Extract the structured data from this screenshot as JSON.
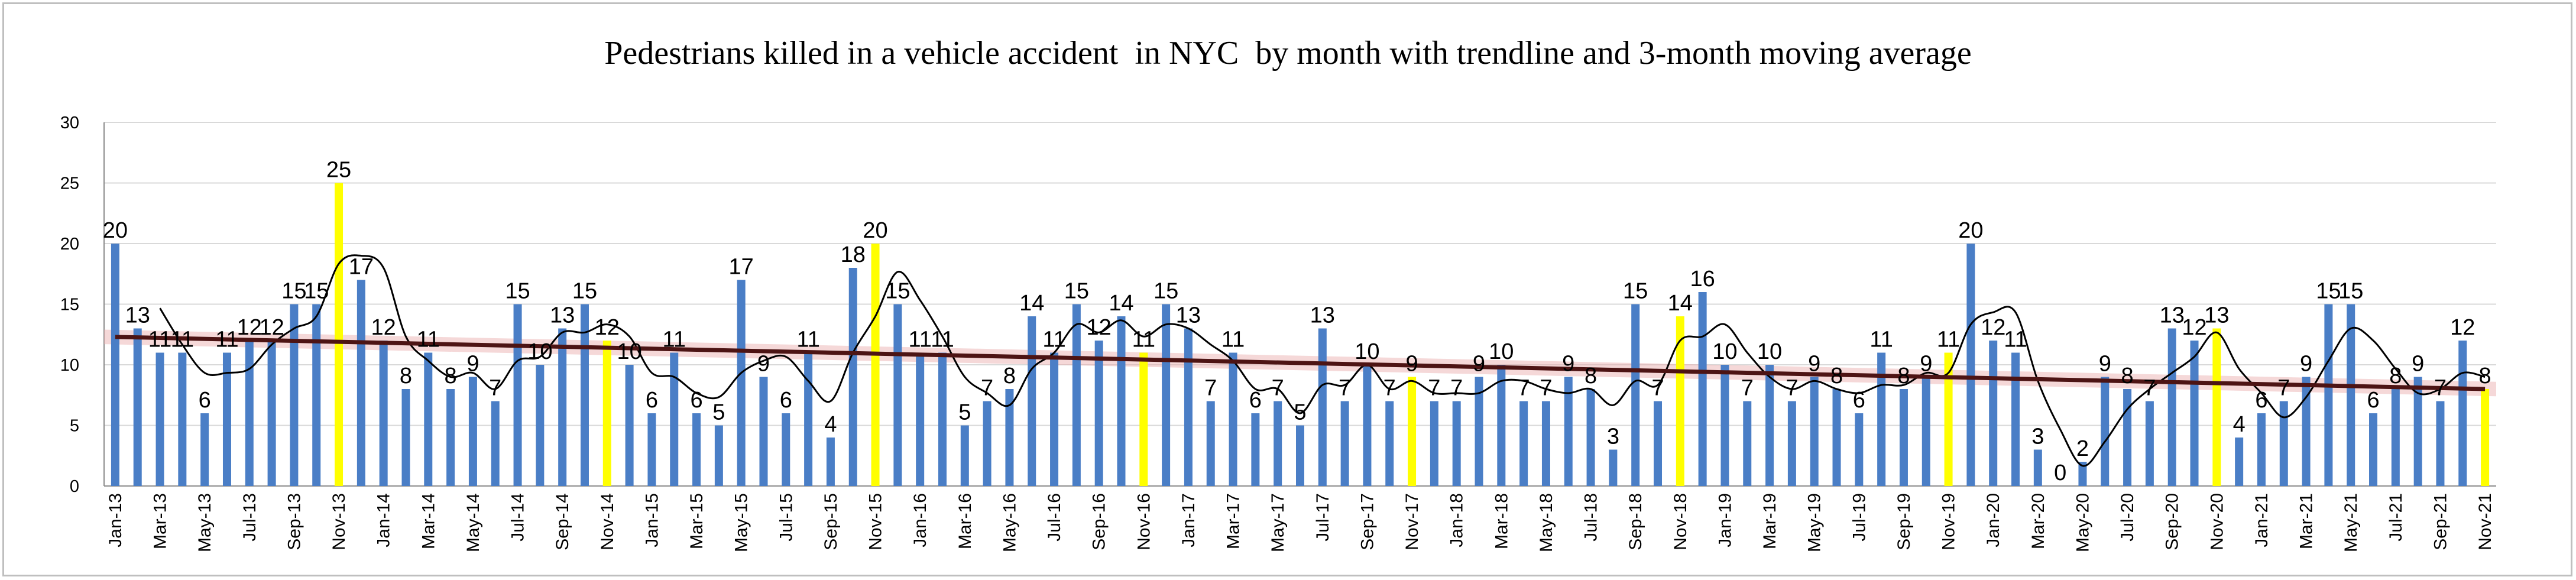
{
  "chart_data": {
    "type": "bar",
    "title": "Pedestrians killed in a vehicle accident  in NYC  by month with trendline and 3-month moving average",
    "xlabel": "",
    "ylabel": "",
    "ylim": [
      0,
      30
    ],
    "yticks": [
      0,
      5,
      10,
      15,
      20,
      25,
      30
    ],
    "grid": true,
    "legend": "none",
    "x_tick_labels": [
      "Jan-13",
      "Mar-13",
      "May-13",
      "Jul-13",
      "Sep-13",
      "Nov-13",
      "Jan-14",
      "Mar-14",
      "May-14",
      "Jul-14",
      "Sep-14",
      "Nov-14",
      "Jan-15",
      "Mar-15",
      "May-15",
      "Jul-15",
      "Sep-15",
      "Nov-15",
      "Jan-16",
      "Mar-16",
      "May-16",
      "Jul-16",
      "Sep-16",
      "Nov-16",
      "Jan-17",
      "Mar-17",
      "May-17",
      "Jul-17",
      "Sep-17",
      "Nov-17",
      "Jan-18",
      "Mar-18",
      "May-18",
      "Jul-18",
      "Sep-18",
      "Nov-18",
      "Jan-19",
      "Mar-19",
      "May-19",
      "Jul-19",
      "Sep-19",
      "Nov-19",
      "Jan-20",
      "Mar-20",
      "May-20",
      "Jul-20",
      "Sep-20",
      "Nov-20",
      "Jan-21",
      "Mar-21",
      "May-21",
      "Jul-21",
      "Sep-21",
      "Nov-21"
    ],
    "categories": [
      "Jan-13",
      "Feb-13",
      "Mar-13",
      "Apr-13",
      "May-13",
      "Jun-13",
      "Jul-13",
      "Aug-13",
      "Sep-13",
      "Oct-13",
      "Nov-13",
      "Dec-13",
      "Jan-14",
      "Feb-14",
      "Mar-14",
      "Apr-14",
      "May-14",
      "Jun-14",
      "Jul-14",
      "Aug-14",
      "Sep-14",
      "Oct-14",
      "Nov-14",
      "Dec-14",
      "Jan-15",
      "Feb-15",
      "Mar-15",
      "Apr-15",
      "May-15",
      "Jun-15",
      "Jul-15",
      "Aug-15",
      "Sep-15",
      "Oct-15",
      "Nov-15",
      "Dec-15",
      "Jan-16",
      "Feb-16",
      "Mar-16",
      "Apr-16",
      "May-16",
      "Jun-16",
      "Jul-16",
      "Aug-16",
      "Sep-16",
      "Oct-16",
      "Nov-16",
      "Dec-16",
      "Jan-17",
      "Feb-17",
      "Mar-17",
      "Apr-17",
      "May-17",
      "Jun-17",
      "Jul-17",
      "Aug-17",
      "Sep-17",
      "Oct-17",
      "Nov-17",
      "Dec-17",
      "Jan-18",
      "Feb-18",
      "Mar-18",
      "Apr-18",
      "May-18",
      "Jun-18",
      "Jul-18",
      "Aug-18",
      "Sep-18",
      "Oct-18",
      "Nov-18",
      "Dec-18",
      "Jan-19",
      "Feb-19",
      "Mar-19",
      "Apr-19",
      "May-19",
      "Jun-19",
      "Jul-19",
      "Aug-19",
      "Sep-19",
      "Oct-19",
      "Nov-19",
      "Dec-19",
      "Jan-20",
      "Feb-20",
      "Mar-20",
      "Apr-20",
      "May-20",
      "Jun-20",
      "Jul-20",
      "Aug-20",
      "Sep-20",
      "Oct-20",
      "Nov-20",
      "Dec-20",
      "Jan-21",
      "Feb-21",
      "Mar-21",
      "Apr-21",
      "May-21",
      "Jun-21",
      "Jul-21",
      "Aug-21",
      "Sep-21",
      "Oct-21",
      "Nov-21"
    ],
    "values": [
      20,
      13,
      11,
      11,
      6,
      11,
      12,
      12,
      15,
      15,
      25,
      17,
      12,
      8,
      11,
      8,
      9,
      7,
      15,
      10,
      13,
      15,
      12,
      10,
      6,
      11,
      6,
      5,
      17,
      9,
      6,
      11,
      4,
      18,
      20,
      15,
      11,
      11,
      5,
      7,
      8,
      14,
      11,
      15,
      12,
      14,
      11,
      15,
      13,
      7,
      11,
      6,
      7,
      5,
      13,
      7,
      10,
      7,
      9,
      7,
      7,
      9,
      10,
      7,
      7,
      9,
      8,
      3,
      15,
      7,
      14,
      16,
      10,
      7,
      10,
      7,
      9,
      8,
      6,
      11,
      8,
      9,
      11,
      20,
      12,
      11,
      3,
      0,
      2,
      9,
      8,
      7,
      13,
      12,
      13,
      4,
      6,
      7,
      9,
      15,
      15,
      6,
      8,
      9,
      7,
      12,
      8
    ],
    "highlight_months": [
      "Nov-13",
      "Nov-14",
      "Nov-15",
      "Nov-16",
      "Nov-17",
      "Nov-18",
      "Nov-19",
      "Nov-20",
      "Nov-21"
    ],
    "overlays": [
      {
        "type": "linear-trendline",
        "start": 12.3,
        "end": 8.0
      },
      {
        "type": "moving-average",
        "window": 3
      }
    ],
    "colors": {
      "bar": "#4a7ec6",
      "highlight_bar": "#ffff00",
      "trendline": "#4d1414",
      "moving_average": "#000000",
      "trend_band": "#e8a8a8",
      "grid": "#d9d9d9"
    }
  }
}
